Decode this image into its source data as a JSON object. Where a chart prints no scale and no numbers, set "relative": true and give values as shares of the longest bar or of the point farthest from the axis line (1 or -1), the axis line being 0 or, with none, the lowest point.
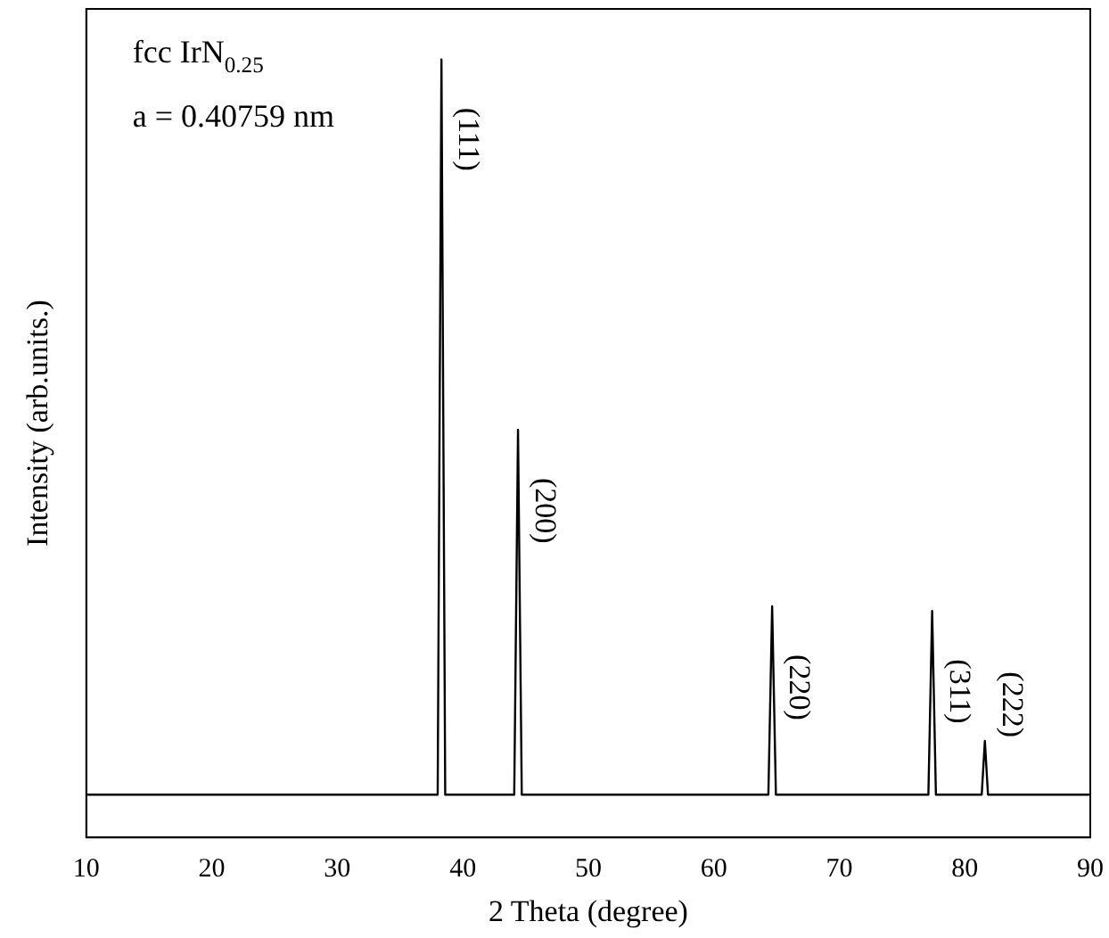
{
  "chart_data": {
    "type": "line",
    "relative": true,
    "xlabel": "2 Theta (degree)",
    "ylabel": "Intensity (arb.units.)",
    "x": [
      10,
      38.0,
      38.3,
      38.6,
      44.1,
      44.4,
      44.7,
      64.35,
      64.65,
      64.95,
      77.1,
      77.4,
      77.7,
      81.35,
      81.6,
      81.85,
      90
    ],
    "series": [
      {
        "color": "#000000",
        "values": [
          0.055,
          0.055,
          1,
          0.055,
          0.055,
          0.524,
          0.055,
          0.055,
          0.297,
          0.055,
          0.055,
          0.291,
          0.055,
          0.055,
          0.124,
          0.055,
          0.055
        ]
      }
    ],
    "xlim": [
      10,
      90
    ],
    "xticks": [
      10,
      20,
      30,
      40,
      50,
      60,
      70,
      80,
      90
    ],
    "grid": false,
    "legend": false,
    "marker": "none",
    "annotations": [
      "fcc IrN$_{0.25}$",
      "a = 0.40759 nm",
      {
        "text": "(111)",
        "x": 38.3,
        "y": 1
      },
      {
        "text": "(200)",
        "x": 44.4,
        "y": 0.524
      },
      {
        "text": "(220)",
        "x": 64.65,
        "y": 0.297
      },
      {
        "text": "(311)",
        "x": 77.4,
        "y": 0.291
      },
      {
        "text": "(222)",
        "x": 81.6,
        "y": 0.124
      }
    ]
  }
}
